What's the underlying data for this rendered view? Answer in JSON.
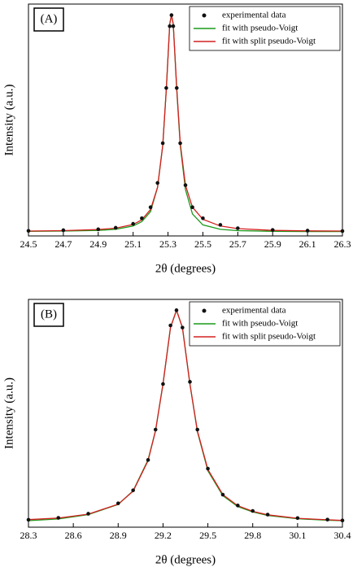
{
  "chart_data": [
    {
      "type": "scatter",
      "panel_label": "(A)",
      "xlabel": "2θ (degrees)",
      "ylabel": "Intensity (a.u.)",
      "xlim": [
        24.5,
        26.3
      ],
      "xticks": [
        24.5,
        24.7,
        24.9,
        25.1,
        25.3,
        25.5,
        25.7,
        25.9,
        26.1,
        26.3
      ],
      "ylim": [
        0,
        1.05
      ],
      "legend": "upper right",
      "x": [
        24.5,
        24.7,
        24.9,
        25.0,
        25.1,
        25.15,
        25.2,
        25.24,
        25.27,
        25.29,
        25.31,
        25.32,
        25.33,
        25.35,
        25.37,
        25.4,
        25.44,
        25.5,
        25.6,
        25.7,
        25.9,
        26.1,
        26.3
      ],
      "series": [
        {
          "name": "experimental data",
          "color": "#111111",
          "style": "markers",
          "values": [
            0.023,
            0.026,
            0.03,
            0.037,
            0.055,
            0.08,
            0.13,
            0.24,
            0.42,
            0.67,
            0.95,
            1.0,
            0.95,
            0.67,
            0.42,
            0.23,
            0.13,
            0.08,
            0.05,
            0.035,
            0.027,
            0.024,
            0.022
          ]
        },
        {
          "name": "fit with pseudo-Voigt",
          "color": "#1a9a1a",
          "style": "line",
          "values": [
            0.021,
            0.022,
            0.025,
            0.03,
            0.045,
            0.065,
            0.11,
            0.22,
            0.41,
            0.66,
            0.96,
            1.0,
            0.96,
            0.66,
            0.41,
            0.21,
            0.1,
            0.05,
            0.03,
            0.024,
            0.021,
            0.02,
            0.02
          ]
        },
        {
          "name": "fit with split pseudo-Voigt",
          "color": "#d42020",
          "style": "line",
          "values": [
            0.022,
            0.024,
            0.029,
            0.035,
            0.052,
            0.073,
            0.12,
            0.22,
            0.41,
            0.66,
            0.96,
            1.0,
            0.96,
            0.67,
            0.42,
            0.23,
            0.13,
            0.075,
            0.045,
            0.033,
            0.025,
            0.023,
            0.022
          ]
        }
      ]
    },
    {
      "type": "scatter",
      "panel_label": "(B)",
      "xlabel": "2θ (degrees)",
      "ylabel": "Intensity (a.u.)",
      "xlim": [
        28.3,
        30.4
      ],
      "xticks": [
        28.3,
        28.6,
        28.9,
        29.2,
        29.5,
        29.8,
        30.1,
        30.4
      ],
      "ylim": [
        0,
        1.05
      ],
      "legend": "upper right",
      "x": [
        28.3,
        28.5,
        28.7,
        28.9,
        29.0,
        29.1,
        29.15,
        29.2,
        29.25,
        29.29,
        29.33,
        29.38,
        29.43,
        29.5,
        29.6,
        29.7,
        29.8,
        29.9,
        30.1,
        30.3,
        30.4
      ],
      "series": [
        {
          "name": "experimental data",
          "color": "#111111",
          "style": "markers",
          "values": [
            0.034,
            0.043,
            0.062,
            0.11,
            0.17,
            0.31,
            0.45,
            0.66,
            0.93,
            1.0,
            0.92,
            0.67,
            0.45,
            0.27,
            0.15,
            0.1,
            0.075,
            0.058,
            0.042,
            0.035,
            0.031
          ]
        },
        {
          "name": "fit with pseudo-Voigt",
          "color": "#1a9a1a",
          "style": "line",
          "values": [
            0.03,
            0.038,
            0.058,
            0.105,
            0.168,
            0.31,
            0.445,
            0.66,
            0.92,
            1.0,
            0.92,
            0.66,
            0.44,
            0.26,
            0.145,
            0.095,
            0.07,
            0.054,
            0.039,
            0.032,
            0.03
          ]
        },
        {
          "name": "fit with split pseudo-Voigt",
          "color": "#d42020",
          "style": "line",
          "values": [
            0.035,
            0.042,
            0.06,
            0.106,
            0.166,
            0.306,
            0.444,
            0.66,
            0.92,
            1.0,
            0.92,
            0.66,
            0.444,
            0.266,
            0.15,
            0.099,
            0.073,
            0.057,
            0.041,
            0.034,
            0.031
          ]
        }
      ]
    }
  ]
}
